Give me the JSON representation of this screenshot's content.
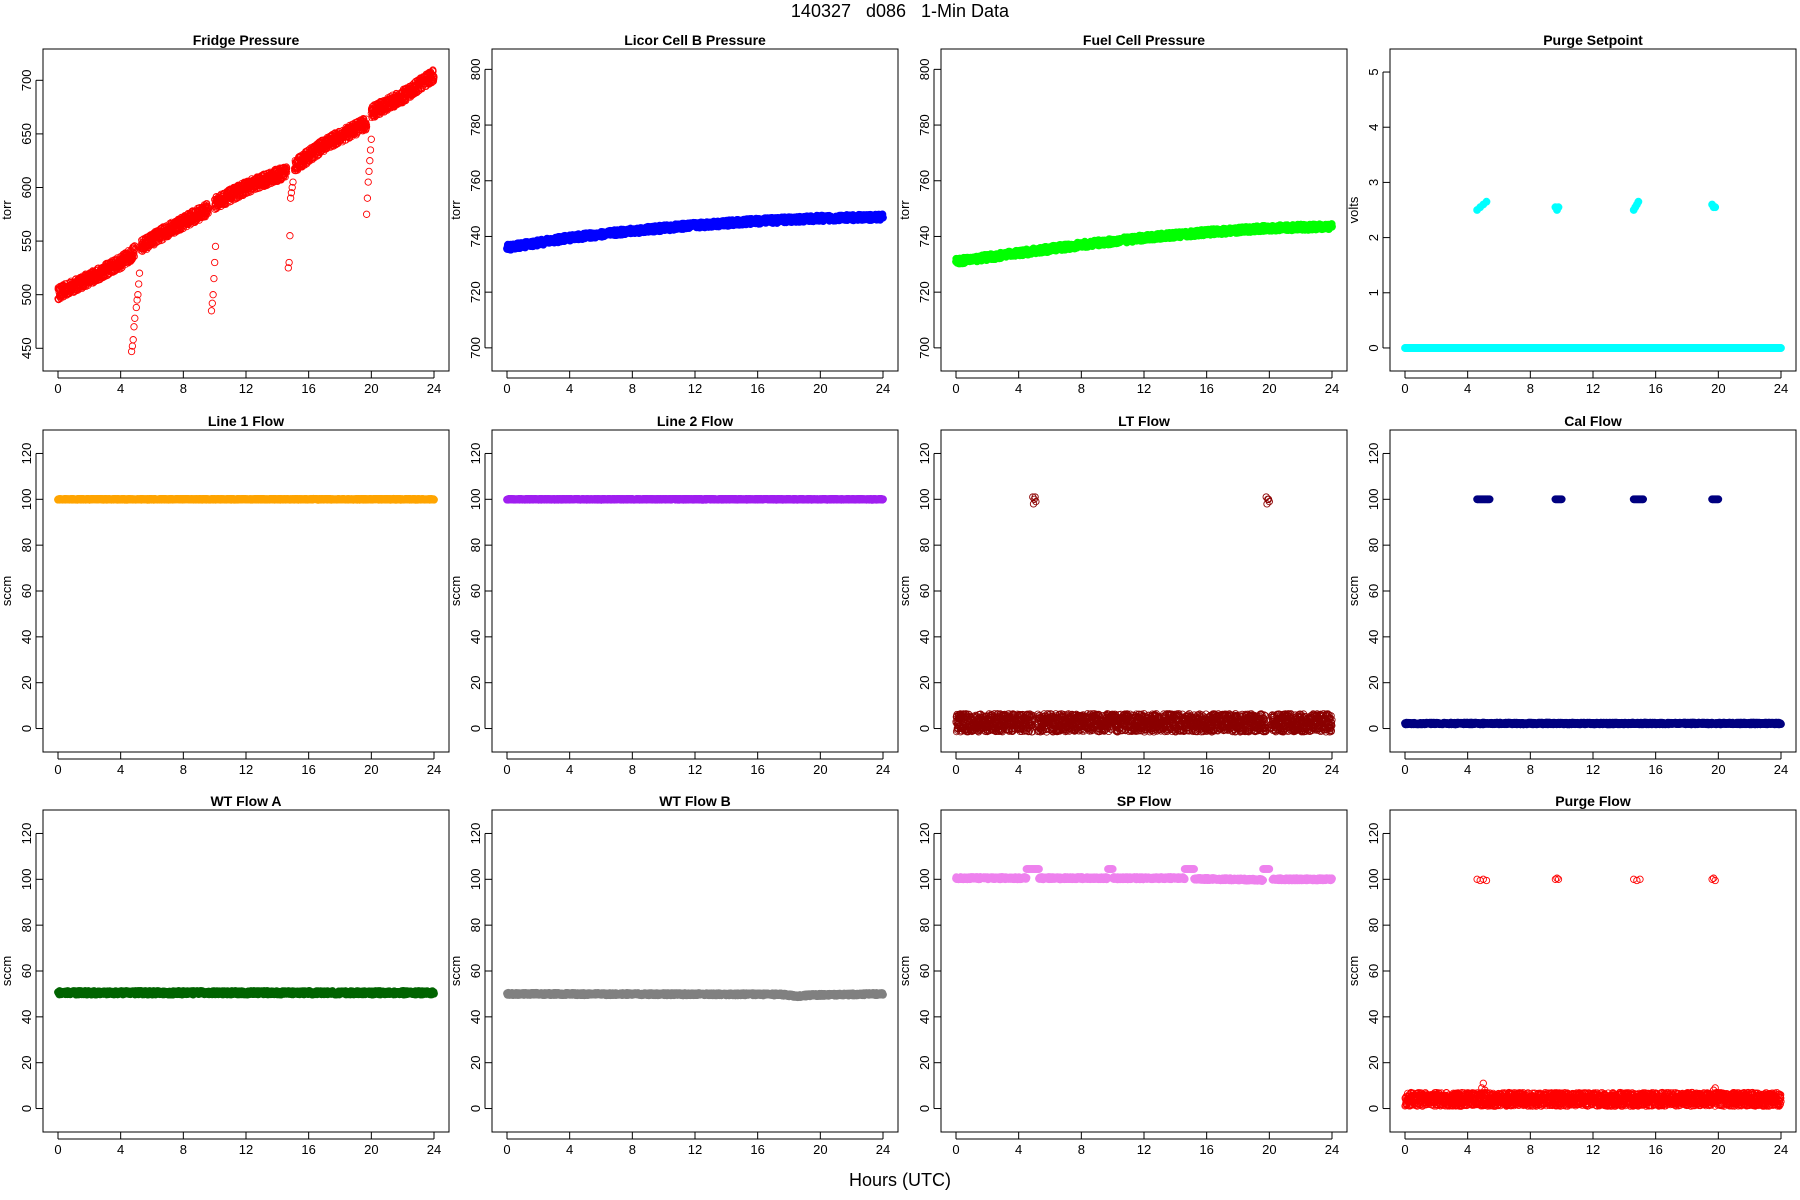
{
  "figure": {
    "title": "140327   d086   1-Min Data",
    "xlabel": "Hours (UTC)"
  },
  "chart_data": [
    {
      "type": "scatter",
      "title": "Fridge Pressure",
      "ylabel": "torr",
      "color": "#ff0000",
      "marker": "open",
      "xlim": [
        0,
        24
      ],
      "ylim": [
        440,
        718
      ],
      "xticks": [
        0,
        4,
        8,
        12,
        16,
        20,
        24
      ],
      "yticks": [
        450,
        500,
        550,
        600,
        650,
        700
      ],
      "series": [
        {
          "x": [
            0,
            2,
            4,
            4.9
          ],
          "y": [
            501,
            515,
            530,
            540
          ],
          "spread": 6,
          "step": 0.01
        },
        {
          "x": [
            5.3,
            7,
            9.6
          ],
          "y": [
            545,
            560,
            580
          ],
          "spread": 6,
          "step": 0.01
        },
        {
          "x": [
            10,
            12,
            14.6
          ],
          "y": [
            585,
            600,
            615
          ],
          "spread": 6,
          "step": 0.01
        },
        {
          "x": [
            15.1,
            17,
            19.7
          ],
          "y": [
            620,
            640,
            660
          ],
          "spread": 6,
          "step": 0.01
        },
        {
          "x": [
            20,
            22,
            24
          ],
          "y": [
            670,
            685,
            705
          ],
          "spread": 6,
          "step": 0.01
        },
        {
          "x": [
            4.7,
            4.75,
            4.8,
            4.85,
            4.9,
            5.0,
            5.05,
            5.1,
            5.15,
            5.2
          ],
          "y": [
            447,
            452,
            458,
            470,
            478,
            488,
            495,
            500,
            510,
            520
          ]
        },
        {
          "x": [
            9.8,
            9.85,
            9.9,
            9.95,
            10.0,
            10.05
          ],
          "y": [
            485,
            492,
            500,
            515,
            530,
            545
          ]
        },
        {
          "x": [
            14.7,
            14.75,
            14.8,
            14.85,
            14.9,
            14.95,
            15.0
          ],
          "y": [
            525,
            530,
            555,
            590,
            595,
            600,
            605
          ]
        },
        {
          "x": [
            19.7,
            19.75,
            19.8,
            19.85,
            19.9,
            19.95,
            20.0
          ],
          "y": [
            575,
            590,
            605,
            615,
            625,
            635,
            645
          ]
        }
      ]
    },
    {
      "type": "scatter",
      "title": "Licor Cell B Pressure",
      "ylabel": "torr",
      "color": "#0000ff",
      "marker": "filled",
      "xlim": [
        0,
        24
      ],
      "ylim": [
        696,
        803
      ],
      "xticks": [
        0,
        4,
        8,
        12,
        16,
        20,
        24
      ],
      "yticks": [
        700,
        720,
        740,
        760,
        780,
        800
      ],
      "series": [
        {
          "x": [
            0,
            4,
            8,
            12,
            16,
            20,
            24
          ],
          "y": [
            736,
            739.5,
            742,
            744,
            745.5,
            746.5,
            747
          ],
          "spread": 1,
          "step": 0.02
        }
      ]
    },
    {
      "type": "scatter",
      "title": "Fuel Cell Pressure",
      "ylabel": "torr",
      "color": "#00ff00",
      "marker": "filled",
      "xlim": [
        0,
        24
      ],
      "ylim": [
        696,
        803
      ],
      "xticks": [
        0,
        4,
        8,
        12,
        16,
        20,
        24
      ],
      "yticks": [
        700,
        720,
        740,
        760,
        780,
        800
      ],
      "series": [
        {
          "x": [
            0,
            4,
            8,
            12,
            16,
            20,
            24
          ],
          "y": [
            731,
            734,
            737,
            739.5,
            741.5,
            743,
            743.5
          ],
          "spread": 1,
          "step": 0.02
        }
      ]
    },
    {
      "type": "scatter",
      "title": "Purge Setpoint",
      "ylabel": "volts",
      "color": "#00ffff",
      "marker": "filled",
      "xlim": [
        0,
        24
      ],
      "ylim": [
        -0.2,
        5.2
      ],
      "xticks": [
        0,
        4,
        8,
        12,
        16,
        20,
        24
      ],
      "yticks": [
        0,
        1,
        2,
        3,
        4,
        5
      ],
      "series": [
        {
          "x": [
            0,
            24
          ],
          "y": [
            0,
            0
          ],
          "spread": 0,
          "step": 0.02
        },
        {
          "x": [
            4.6,
            4.8,
            5.0,
            5.2
          ],
          "y": [
            2.5,
            2.55,
            2.6,
            2.65
          ]
        },
        {
          "x": [
            9.6,
            9.7,
            9.8
          ],
          "y": [
            2.55,
            2.5,
            2.55
          ]
        },
        {
          "x": [
            14.6,
            14.7,
            14.8,
            14.9
          ],
          "y": [
            2.5,
            2.55,
            2.6,
            2.65
          ]
        },
        {
          "x": [
            19.6,
            19.7,
            19.8
          ],
          "y": [
            2.6,
            2.55,
            2.55
          ]
        }
      ]
    },
    {
      "type": "scatter",
      "title": "Line 1 Flow",
      "ylabel": "sccm",
      "color": "#ffa500",
      "marker": "filled",
      "xlim": [
        0,
        24
      ],
      "ylim": [
        -5,
        125
      ],
      "xticks": [
        0,
        4,
        8,
        12,
        16,
        20,
        24
      ],
      "yticks": [
        0,
        20,
        40,
        60,
        80,
        100,
        120
      ],
      "series": [
        {
          "x": [
            0,
            24
          ],
          "y": [
            100,
            100
          ],
          "spread": 0.2,
          "step": 0.02
        }
      ]
    },
    {
      "type": "scatter",
      "title": "Line 2 Flow",
      "ylabel": "sccm",
      "color": "#a020f0",
      "marker": "filled",
      "xlim": [
        0,
        24
      ],
      "ylim": [
        -5,
        125
      ],
      "xticks": [
        0,
        4,
        8,
        12,
        16,
        20,
        24
      ],
      "yticks": [
        0,
        20,
        40,
        60,
        80,
        100,
        120
      ],
      "series": [
        {
          "x": [
            0,
            24
          ],
          "y": [
            100,
            100
          ],
          "spread": 0.2,
          "step": 0.02
        }
      ]
    },
    {
      "type": "scatter",
      "title": "LT Flow",
      "ylabel": "sccm",
      "color": "#8b0000",
      "marker": "open",
      "xlim": [
        0,
        24
      ],
      "ylim": [
        -5,
        125
      ],
      "xticks": [
        0,
        4,
        8,
        12,
        16,
        20,
        24
      ],
      "yticks": [
        0,
        20,
        40,
        60,
        80,
        100,
        120
      ],
      "series": [
        {
          "x": [
            0,
            4.9
          ],
          "y": [
            2.5,
            2.5
          ],
          "spread": 4,
          "step": 0.01
        },
        {
          "x": [
            5.2,
            19.8
          ],
          "y": [
            2.5,
            2.5
          ],
          "spread": 4,
          "step": 0.01
        },
        {
          "x": [
            20.1,
            24
          ],
          "y": [
            2.5,
            2.5
          ],
          "spread": 4,
          "step": 0.01
        },
        {
          "x": [
            4.9,
            5.0,
            5.1,
            4.95,
            5.05
          ],
          "y": [
            101,
            100,
            99,
            98,
            101
          ]
        },
        {
          "x": [
            19.8,
            19.9,
            20.0,
            19.85,
            19.95
          ],
          "y": [
            101,
            100,
            99,
            98,
            100
          ]
        }
      ]
    },
    {
      "type": "scatter",
      "title": "Cal Flow",
      "ylabel": "sccm",
      "color": "#000080",
      "marker": "filled",
      "xlim": [
        0,
        24
      ],
      "ylim": [
        -5,
        125
      ],
      "xticks": [
        0,
        4,
        8,
        12,
        16,
        20,
        24
      ],
      "yticks": [
        0,
        20,
        40,
        60,
        80,
        100,
        120
      ],
      "series": [
        {
          "x": [
            0,
            24
          ],
          "y": [
            2.2,
            2.2
          ],
          "spread": 0.4,
          "step": 0.02
        },
        {
          "x": [
            4.6,
            5.4
          ],
          "y": [
            100,
            100
          ],
          "spread": 0,
          "step": 0.05
        },
        {
          "x": [
            9.6,
            10.0
          ],
          "y": [
            100,
            100
          ],
          "spread": 0,
          "step": 0.05
        },
        {
          "x": [
            14.6,
            15.2
          ],
          "y": [
            100,
            100
          ],
          "spread": 0,
          "step": 0.05
        },
        {
          "x": [
            19.6,
            20.0
          ],
          "y": [
            100,
            100
          ],
          "spread": 0,
          "step": 0.05
        }
      ]
    },
    {
      "type": "scatter",
      "title": "WT Flow A",
      "ylabel": "sccm",
      "color": "#006400",
      "marker": "filled",
      "xlim": [
        0,
        24
      ],
      "ylim": [
        -5,
        125
      ],
      "xticks": [
        0,
        4,
        8,
        12,
        16,
        20,
        24
      ],
      "yticks": [
        0,
        20,
        40,
        60,
        80,
        100,
        120
      ],
      "series": [
        {
          "x": [
            0,
            24
          ],
          "y": [
            50.5,
            50.5
          ],
          "spread": 0.8,
          "step": 0.02
        }
      ]
    },
    {
      "type": "scatter",
      "title": "WT Flow B",
      "ylabel": "sccm",
      "color": "#808080",
      "marker": "filled",
      "xlim": [
        0,
        24
      ],
      "ylim": [
        -5,
        125
      ],
      "xticks": [
        0,
        4,
        8,
        12,
        16,
        20,
        24
      ],
      "yticks": [
        0,
        20,
        40,
        60,
        80,
        100,
        120
      ],
      "series": [
        {
          "x": [
            0,
            17.5,
            18.5,
            19.5,
            24
          ],
          "y": [
            50,
            49.8,
            49,
            49.5,
            50
          ],
          "spread": 0.5,
          "step": 0.02
        }
      ]
    },
    {
      "type": "scatter",
      "title": "SP Flow",
      "ylabel": "sccm",
      "color": "#ee82ee",
      "marker": "filled",
      "xlim": [
        0,
        24
      ],
      "ylim": [
        -5,
        125
      ],
      "xticks": [
        0,
        4,
        8,
        12,
        16,
        20,
        24
      ],
      "yticks": [
        0,
        20,
        40,
        60,
        80,
        100,
        120
      ],
      "series": [
        {
          "x": [
            0,
            4.5
          ],
          "y": [
            100.5,
            100.5
          ],
          "spread": 0.5,
          "step": 0.02
        },
        {
          "x": [
            5.3,
            9.7
          ],
          "y": [
            100.5,
            100.5
          ],
          "spread": 0.5,
          "step": 0.02
        },
        {
          "x": [
            10.0,
            14.6
          ],
          "y": [
            100.5,
            100.5
          ],
          "spread": 0.5,
          "step": 0.02
        },
        {
          "x": [
            15.2,
            19.5,
            19.6
          ],
          "y": [
            100.2,
            99.8,
            99.6
          ],
          "spread": 0.5,
          "step": 0.02
        },
        {
          "x": [
            20.2,
            24
          ],
          "y": [
            100,
            100
          ],
          "spread": 0.5,
          "step": 0.02
        },
        {
          "x": [
            4.5,
            5.3
          ],
          "y": [
            104.5,
            104.5
          ],
          "spread": 0,
          "step": 0.05
        },
        {
          "x": [
            9.7,
            10.0
          ],
          "y": [
            104.5,
            104.5
          ],
          "spread": 0,
          "step": 0.05
        },
        {
          "x": [
            14.6,
            15.2
          ],
          "y": [
            104.5,
            104.5
          ],
          "spread": 0,
          "step": 0.05
        },
        {
          "x": [
            19.6,
            20.0
          ],
          "y": [
            104.5,
            104.5
          ],
          "spread": 0,
          "step": 0.05
        }
      ]
    },
    {
      "type": "scatter",
      "title": "Purge Flow",
      "ylabel": "sccm",
      "color": "#ff0000",
      "marker": "open",
      "xlim": [
        0,
        24
      ],
      "ylim": [
        -5,
        125
      ],
      "xticks": [
        0,
        4,
        8,
        12,
        16,
        20,
        24
      ],
      "yticks": [
        0,
        20,
        40,
        60,
        80,
        100,
        120
      ],
      "series": [
        {
          "x": [
            0,
            24
          ],
          "y": [
            4,
            4
          ],
          "spread": 3,
          "step": 0.01
        },
        {
          "x": [
            4.6,
            4.8,
            5.0,
            5.2
          ],
          "y": [
            100,
            99.5,
            100,
            99.5
          ]
        },
        {
          "x": [
            9.6,
            9.7,
            9.8
          ],
          "y": [
            100,
            100.5,
            100
          ]
        },
        {
          "x": [
            14.6,
            14.8,
            15.0
          ],
          "y": [
            100,
            99.5,
            100
          ]
        },
        {
          "x": [
            19.6,
            19.7,
            19.8
          ],
          "y": [
            100,
            100.5,
            99.5
          ]
        },
        {
          "x": [
            4.9,
            5.0,
            5.1,
            5.2,
            19.7,
            19.8,
            19.9,
            20.0
          ],
          "y": [
            9,
            11,
            8,
            7,
            8,
            9,
            7,
            6
          ]
        }
      ]
    }
  ]
}
